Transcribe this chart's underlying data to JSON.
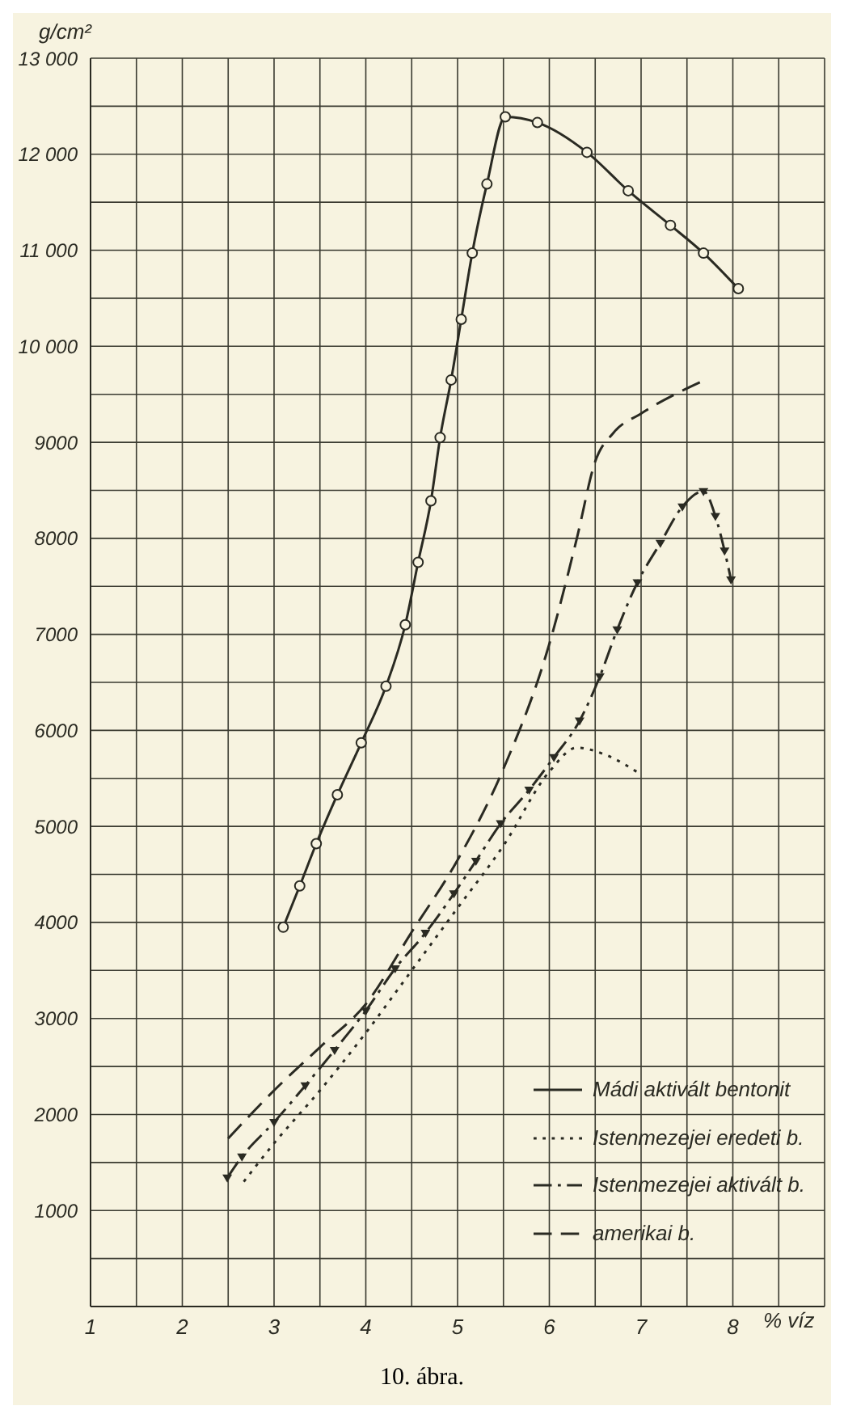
{
  "chart_data": {
    "type": "line",
    "ylabel": "g/cm²",
    "xlabel": "% víz",
    "annotations": [
      "10. ábra."
    ],
    "xlim": [
      1,
      9
    ],
    "ylim": [
      0,
      13000
    ],
    "xticks": [
      1,
      {
        "value": 1.5,
        "label": null
      },
      2,
      {
        "value": 2.5,
        "label": null
      },
      3,
      {
        "value": 3.5,
        "label": null
      },
      4,
      {
        "value": 4.5,
        "label": null
      },
      5,
      {
        "value": 5.5,
        "label": null
      },
      6,
      {
        "value": 6.5,
        "label": null
      },
      7,
      {
        "value": 7.5,
        "label": null
      },
      8,
      {
        "value": 8.5,
        "label": null
      },
      {
        "value": 9,
        "label": null
      }
    ],
    "yticks": [
      {
        "value": 0,
        "label": null
      },
      {
        "value": 500,
        "label": null
      },
      1000,
      {
        "value": 1500,
        "label": null
      },
      2000,
      {
        "value": 2500,
        "label": null
      },
      3000,
      {
        "value": 3500,
        "label": null
      },
      4000,
      {
        "value": 4500,
        "label": null
      },
      5000,
      {
        "value": 5500,
        "label": null
      },
      6000,
      {
        "value": 6500,
        "label": null
      },
      7000,
      {
        "value": 7500,
        "label": null
      },
      8000,
      {
        "value": 8500,
        "label": null
      },
      9000,
      {
        "value": 9500,
        "label": null
      },
      {
        "value": 10000,
        "label": "10 000"
      },
      {
        "value": 10500,
        "label": null
      },
      {
        "value": 11000,
        "label": "11 000"
      },
      {
        "value": 11500,
        "label": null
      },
      {
        "value": 12000,
        "label": "12 000"
      },
      {
        "value": 12500,
        "label": null
      },
      {
        "value": 13000,
        "label": "13 000"
      }
    ],
    "grid": true,
    "legend": "bottom right",
    "series": [
      {
        "name": "Mádi aktivált bentonit",
        "color": "#2a2a22",
        "line_style": "solid",
        "marker": "circle",
        "x": [
          3.1,
          3.28,
          3.46,
          3.69,
          3.95,
          4.22,
          4.43,
          4.57,
          4.71,
          4.81,
          4.93,
          5.04,
          5.16,
          5.32,
          5.52,
          5.87,
          6.41,
          6.86,
          7.32,
          7.68,
          8.06
        ],
        "values": [
          3950,
          4380,
          4820,
          5330,
          5870,
          6460,
          7100,
          7750,
          8390,
          9050,
          9650,
          10280,
          10970,
          11690,
          12390,
          12330,
          12020,
          11620,
          11260,
          10970,
          10600
        ]
      },
      {
        "name": "Istenmezejei eredeti b.",
        "color": "#2a2a22",
        "line_style": "dotted",
        "marker": "none",
        "x": [
          2.67,
          3,
          3.5,
          4,
          4.5,
          5,
          5.5,
          6,
          6.3,
          6.6,
          7
        ],
        "values": [
          1300,
          1700,
          2250,
          2850,
          3500,
          4150,
          4800,
          5570,
          5820,
          5750,
          5540
        ]
      },
      {
        "name": "Istenmezejei aktivált b.",
        "color": "#2a2a22",
        "line_style": "dashdot",
        "marker": "triangle",
        "x": [
          2.49,
          2.65,
          3.0,
          3.34,
          3.66,
          4.0,
          4.32,
          4.65,
          4.96,
          5.2,
          5.47,
          5.78,
          6.05,
          6.33,
          6.55,
          6.74,
          6.96,
          7.21,
          7.45,
          7.68,
          7.81,
          7.91,
          7.98
        ],
        "values": [
          1340,
          1560,
          1920,
          2300,
          2670,
          3080,
          3520,
          3890,
          4300,
          4640,
          5030,
          5380,
          5720,
          6100,
          6560,
          7050,
          7540,
          7950,
          8330,
          8490,
          8230,
          7870,
          7570
        ]
      },
      {
        "name": "amerikai b.",
        "color": "#2a2a22",
        "line_style": "dashed",
        "marker": "none",
        "x": [
          2.5,
          3,
          3.5,
          4,
          4.5,
          5,
          5.5,
          6,
          6.3,
          6.5,
          6.7,
          7,
          7.7
        ],
        "values": [
          1750,
          2250,
          2700,
          3150,
          3900,
          4650,
          5600,
          6900,
          8000,
          8800,
          9100,
          9300,
          9650
        ]
      }
    ]
  }
}
